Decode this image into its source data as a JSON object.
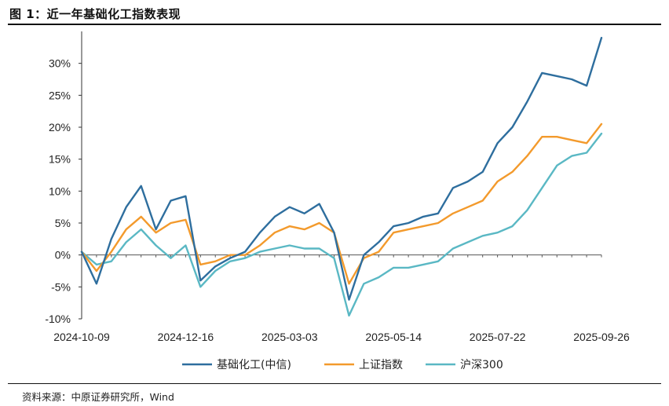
{
  "figure": {
    "title": "图 1：近一年基础化工指数表现",
    "source": "资料来源：中原证券研究所，Wind"
  },
  "chart_data": {
    "type": "line",
    "title": "近一年基础化工指数表现",
    "xlabel": "",
    "ylabel": "",
    "ylim": [
      -10,
      35
    ],
    "yticks": [
      -10,
      -5,
      0,
      5,
      10,
      15,
      20,
      25,
      30
    ],
    "ytick_labels": [
      "-10%",
      "-5%",
      "0%",
      "5%",
      "10%",
      "15%",
      "20%",
      "25%",
      "30%"
    ],
    "x_dates": [
      "2024-10-09",
      "2024-10-18",
      "2024-10-28",
      "2024-11-06",
      "2024-11-15",
      "2024-11-25",
      "2024-12-04",
      "2024-12-16",
      "2024-12-25",
      "2025-01-06",
      "2025-01-15",
      "2025-01-24",
      "2025-02-10",
      "2025-02-19",
      "2025-03-03",
      "2025-03-12",
      "2025-03-21",
      "2025-03-31",
      "2025-04-07",
      "2025-04-16",
      "2025-04-25",
      "2025-05-14",
      "2025-05-23",
      "2025-06-04",
      "2025-06-13",
      "2025-06-24",
      "2025-07-03",
      "2025-07-14",
      "2025-07-22",
      "2025-07-31",
      "2025-08-11",
      "2025-08-20",
      "2025-08-29",
      "2025-09-09",
      "2025-09-18",
      "2025-09-26"
    ],
    "xtick_labels": [
      "2024-10-09",
      "2024-12-16",
      "2025-03-03",
      "2025-05-14",
      "2025-07-22",
      "2025-09-26"
    ],
    "series": [
      {
        "name": "基础化工(中信)",
        "color": "#2e6e9e",
        "values": [
          0.5,
          -4.5,
          2.5,
          7.5,
          10.8,
          4.0,
          8.5,
          9.2,
          -4.0,
          -1.8,
          -0.5,
          0.5,
          3.5,
          6.0,
          7.5,
          6.5,
          8.0,
          3.5,
          -7.0,
          0.0,
          2.0,
          4.5,
          5.0,
          6.0,
          6.5,
          10.5,
          11.5,
          13.0,
          17.5,
          20.0,
          24.0,
          28.5,
          28.0,
          27.5,
          26.5,
          34.0
        ]
      },
      {
        "name": "上证指数",
        "color": "#f39a2c",
        "values": [
          0.5,
          -2.5,
          0.5,
          4.0,
          6.0,
          3.5,
          5.0,
          5.5,
          -1.5,
          -1.0,
          0.0,
          0.0,
          1.5,
          3.5,
          4.5,
          4.0,
          5.0,
          3.5,
          -4.5,
          -0.5,
          0.5,
          3.5,
          4.0,
          4.5,
          5.0,
          6.5,
          7.5,
          8.5,
          11.5,
          13.0,
          15.5,
          18.5,
          18.5,
          18.0,
          17.5,
          20.5
        ]
      },
      {
        "name": "沪深300",
        "color": "#5ab8c4",
        "values": [
          0.5,
          -1.5,
          -1.0,
          2.0,
          4.0,
          1.5,
          -0.5,
          1.5,
          -5.0,
          -2.5,
          -1.0,
          -0.5,
          0.5,
          1.0,
          1.5,
          1.0,
          1.0,
          -0.5,
          -9.5,
          -4.5,
          -3.5,
          -2.0,
          -2.0,
          -1.5,
          -1.0,
          1.0,
          2.0,
          3.0,
          3.5,
          4.5,
          7.0,
          10.5,
          14.0,
          15.5,
          16.0,
          19.0
        ]
      }
    ],
    "legend_position": "bottom-center",
    "grid": false
  }
}
